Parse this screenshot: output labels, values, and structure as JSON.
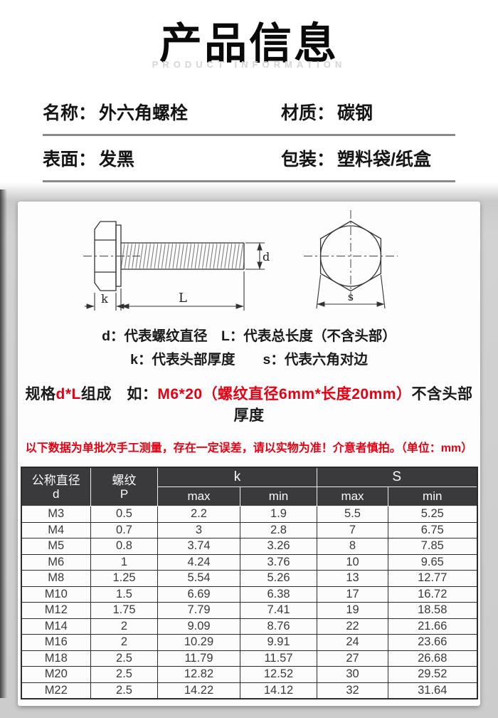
{
  "header": {
    "title": "产品信息",
    "subtitle": "PRODUCT INFORMATION"
  },
  "info": {
    "name": {
      "label": "名称：",
      "value": "外六角螺栓"
    },
    "material": {
      "label": "材质：",
      "value": "碳钢"
    },
    "surface": {
      "label": "表面：",
      "value": "发黑"
    },
    "packaging": {
      "label": "包装：",
      "value": "塑料袋/纸盒"
    }
  },
  "diagram": {
    "dim_d": "d",
    "dim_L": "L",
    "dim_k": "k",
    "dim_s": "s",
    "legend_line1": "d：代表螺纹直径　L：代表总长度（不含头部）",
    "legend_line2": "k：代表头部厚度　　s：代表六角对边"
  },
  "spec": {
    "black1": "规格",
    "red1": "d*L",
    "black2": "组成　如：",
    "red2": "M6*20（螺纹直径6mm*长度20mm）",
    "black3": "不含头部厚度"
  },
  "note": "以下数据为单批次手工测量，存在一定误差，请以实物为准！介意者慎拍。（单位：mm）",
  "table": {
    "header": {
      "col1_top": "公称直径",
      "col1_bottom": "d",
      "col2_top": "螺纹",
      "col2_bottom": "P",
      "group_k": "k",
      "group_s": "S",
      "sub": [
        "max",
        "min",
        "max",
        "min"
      ]
    },
    "rows": [
      [
        "M3",
        "0.5",
        "2.2",
        "1.9",
        "5.5",
        "5.25"
      ],
      [
        "M4",
        "0.7",
        "3",
        "2.8",
        "7",
        "6.75"
      ],
      [
        "M5",
        "0.8",
        "3.74",
        "3.26",
        "8",
        "7.85"
      ],
      [
        "M6",
        "1",
        "4.24",
        "3.76",
        "10",
        "9.65"
      ],
      [
        "M8",
        "1.25",
        "5.54",
        "5.26",
        "13",
        "12.77"
      ],
      [
        "M10",
        "1.5",
        "6.69",
        "6.38",
        "17",
        "16.72"
      ],
      [
        "M12",
        "1.75",
        "7.79",
        "7.41",
        "19",
        "18.58"
      ],
      [
        "M14",
        "2",
        "9.09",
        "8.76",
        "22",
        "21.66"
      ],
      [
        "M16",
        "2",
        "10.29",
        "9.91",
        "24",
        "23.66"
      ],
      [
        "M18",
        "2.5",
        "11.79",
        "11.57",
        "27",
        "26.68"
      ],
      [
        "M20",
        "2.5",
        "12.82",
        "12.52",
        "30",
        "29.52"
      ],
      [
        "M22",
        "2.5",
        "14.22",
        "14.12",
        "32",
        "31.64"
      ]
    ]
  },
  "colors": {
    "accent_red": "#e60012",
    "table_header_bg": "#3a3a3c",
    "divider_gray": "#8a8a8a"
  }
}
